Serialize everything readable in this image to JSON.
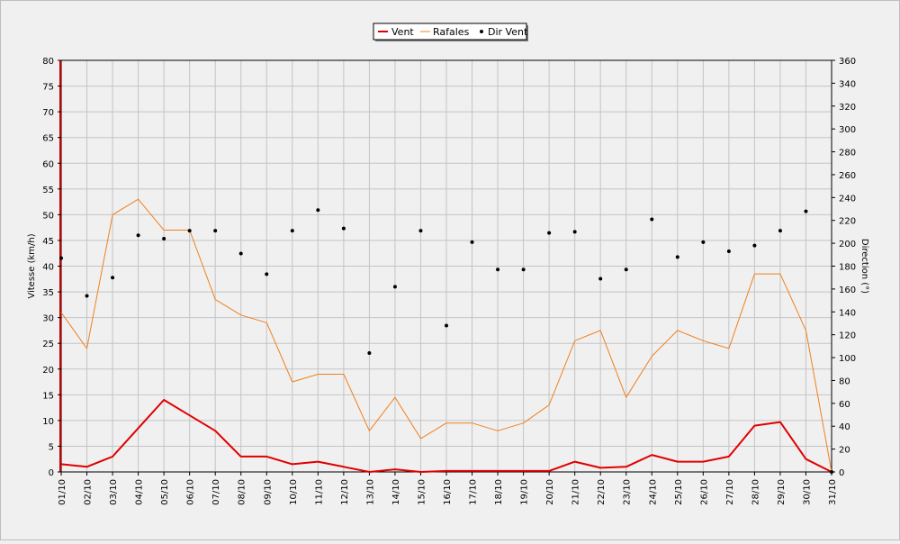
{
  "chart_data": {
    "type": "line",
    "categories": [
      "01/10",
      "02/10",
      "03/10",
      "04/10",
      "05/10",
      "06/10",
      "07/10",
      "08/10",
      "09/10",
      "10/10",
      "11/10",
      "12/10",
      "13/10",
      "14/10",
      "15/10",
      "16/10",
      "17/10",
      "18/10",
      "19/10",
      "20/10",
      "21/10",
      "22/10",
      "23/10",
      "24/10",
      "25/10",
      "26/10",
      "27/10",
      "28/10",
      "29/10",
      "30/10",
      "31/10"
    ],
    "series": [
      {
        "name": "Vent",
        "kind": "line",
        "axis": "left",
        "color": "#e00000",
        "values": [
          1.5,
          1,
          3,
          8.5,
          14,
          11,
          8,
          3,
          3,
          1.5,
          2,
          1,
          0,
          0.5,
          0,
          0.2,
          0.2,
          0.2,
          0.2,
          0.2,
          2,
          0.8,
          1,
          3.3,
          2,
          2,
          3,
          9,
          9.7,
          2.5,
          0
        ]
      },
      {
        "name": "Rafales",
        "kind": "line",
        "axis": "left",
        "color": "#f0801e",
        "values": [
          31,
          24,
          50,
          53,
          47,
          47,
          33.5,
          30.5,
          29,
          17.5,
          19,
          19,
          8,
          14.5,
          6.5,
          9.5,
          9.5,
          8,
          9.5,
          13,
          25.5,
          27.5,
          14.5,
          22.5,
          27.5,
          25.5,
          24,
          38.5,
          38.5,
          27.5,
          0
        ]
      },
      {
        "name": "Dir Vent",
        "kind": "scatter",
        "axis": "right",
        "color": "#000000",
        "values": [
          187,
          154,
          170,
          207,
          204,
          211,
          211,
          191,
          173,
          211,
          229,
          213,
          104,
          162,
          211,
          128,
          201,
          177,
          177,
          209,
          210,
          169,
          177,
          221,
          188,
          201,
          193,
          198,
          211,
          228,
          0
        ]
      }
    ],
    "ylabel": "Vitesse (km/h)",
    "ylim": [
      0,
      80
    ],
    "yticks": [
      0,
      5,
      10,
      15,
      20,
      25,
      30,
      35,
      40,
      45,
      50,
      55,
      60,
      65,
      70,
      75,
      80
    ],
    "y2label": "Direction (°)",
    "y2lim": [
      0,
      360
    ],
    "y2ticks": [
      0,
      20,
      40,
      60,
      80,
      100,
      120,
      140,
      160,
      180,
      200,
      220,
      240,
      260,
      280,
      300,
      320,
      340,
      360
    ],
    "grid": true,
    "legend_position": "top-center"
  }
}
